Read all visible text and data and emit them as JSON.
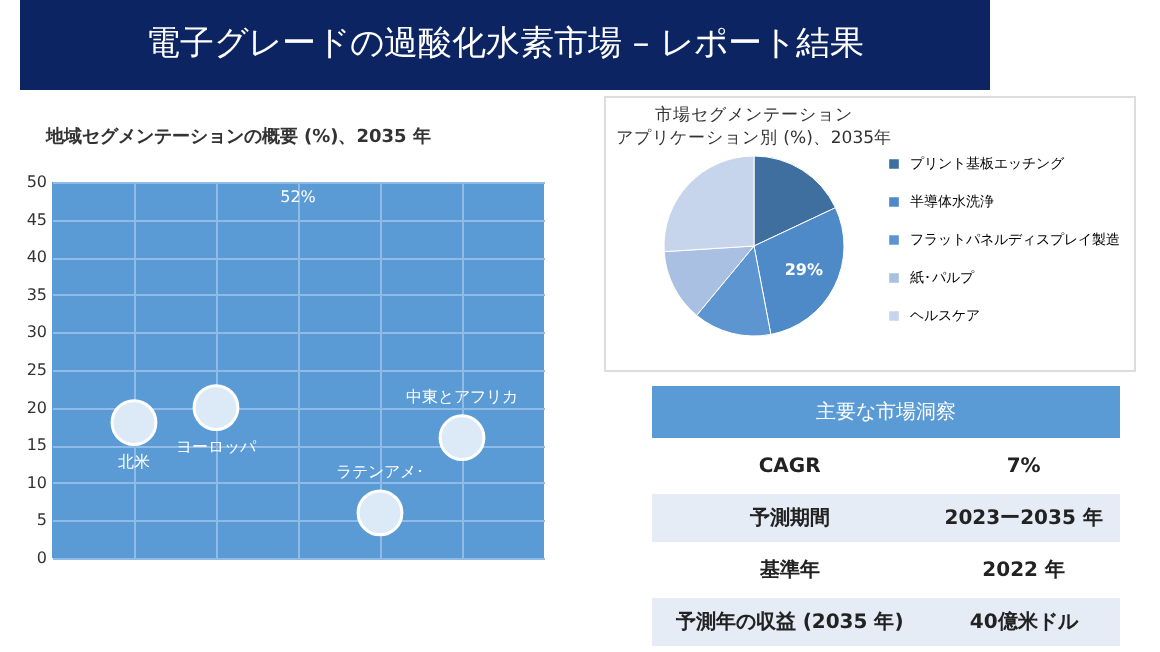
{
  "chart_data": [
    {
      "type": "other",
      "title": "電子グレードの過酸化水素市場 – レポート結果"
    },
    {
      "type": "scatter",
      "title": "地域セグメンテーションの概要 (%)、2035 年",
      "categories": [
        null,
        null,
        null,
        null,
        null
      ],
      "ylim": [
        0,
        50
      ],
      "yticks": [
        0,
        5,
        10,
        15,
        20,
        25,
        30,
        35,
        40,
        45,
        50
      ],
      "grid": true,
      "tick_labels": "y",
      "marker": "circle",
      "series": [
        {
          "name": "北米",
          "color": "#dce9f6",
          "values": [
            18,
            null,
            null,
            null,
            null
          ]
        },
        {
          "name": "ヨーロッパ",
          "color": "#dce9f6",
          "values": [
            null,
            20,
            null,
            null,
            null
          ]
        },
        {
          "name": "ラテンアメ･",
          "color": "#dce9f6",
          "values": [
            null,
            null,
            null,
            6,
            null
          ]
        },
        {
          "name": "中東とアフリカ",
          "color": "#dce9f6",
          "values": [
            null,
            null,
            null,
            null,
            16
          ]
        }
      ],
      "annotations": [
        "52%"
      ]
    },
    {
      "type": "pie",
      "title": "市場セグメンテーション",
      "subtitle": "アプリケーション別 (%)、2035年",
      "legend": "right",
      "categories": [
        "プリント基板エッチング",
        "半導体水洗浄",
        "フラットパネルディスプレイ製造",
        "紙･パルプ",
        "ヘルスケア"
      ],
      "values": [
        18,
        29,
        14,
        13,
        26
      ],
      "colors": [
        "#3f6f9f",
        "#4f8ac8",
        "#5d95d0",
        "#a9c0e2",
        "#c7d5ec"
      ],
      "value_labels": [
        null,
        "29%",
        null,
        null,
        null
      ]
    },
    {
      "type": "other",
      "title": "主要な市場洞察",
      "annotations": [
        "CAGR",
        "7%",
        "予測期間",
        "2023ー2035 年",
        "基準年",
        "2022 年",
        "予測年の収益 (2035 年)",
        "40億米ドル"
      ]
    }
  ]
}
